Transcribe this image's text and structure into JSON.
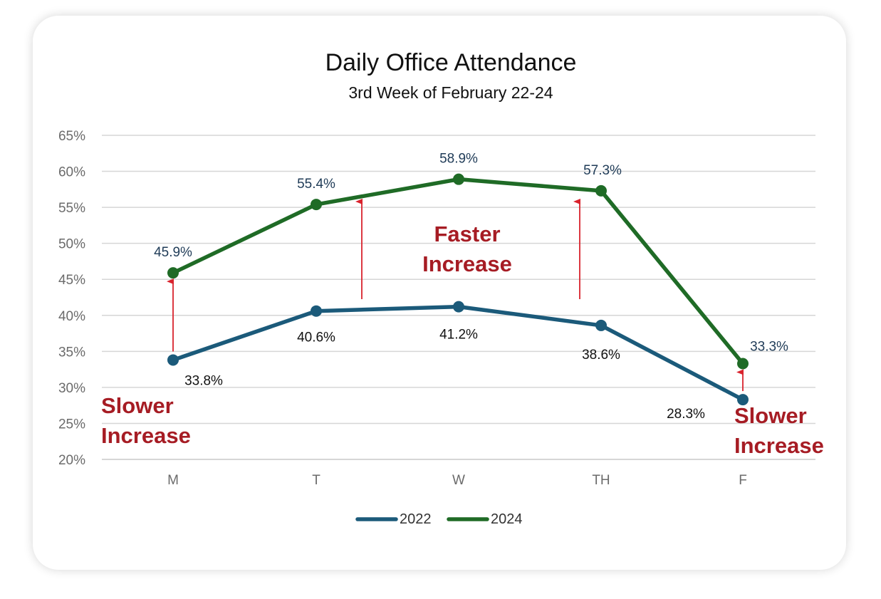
{
  "chart_data": {
    "type": "line",
    "title": "Daily Office Attendance",
    "subtitle": "3rd Week of February 22-24",
    "categories": [
      "M",
      "T",
      "W",
      "TH",
      "F"
    ],
    "y_ticks": [
      "20%",
      "25%",
      "30%",
      "35%",
      "40%",
      "45%",
      "50%",
      "55%",
      "60%",
      "65%"
    ],
    "ylim": [
      20,
      65
    ],
    "grid": true,
    "legend_position": "bottom",
    "series": [
      {
        "name": "2022",
        "color": "#1b5a7a",
        "values": [
          33.8,
          40.6,
          41.2,
          38.6,
          28.3
        ],
        "labels": [
          "33.8%",
          "40.6%",
          "41.2%",
          "38.6%",
          "28.3%"
        ]
      },
      {
        "name": "2024",
        "color": "#1f6b26",
        "values": [
          45.9,
          55.4,
          58.9,
          57.3,
          33.3
        ],
        "labels": [
          "45.9%",
          "55.4%",
          "58.9%",
          "57.3%",
          "33.3%"
        ]
      }
    ],
    "annotations": {
      "left": [
        "Slower",
        "Increase"
      ],
      "middle": [
        "Faster",
        "Increase"
      ],
      "right": [
        "Slower",
        "Increase"
      ],
      "color": "#a61c24"
    }
  }
}
